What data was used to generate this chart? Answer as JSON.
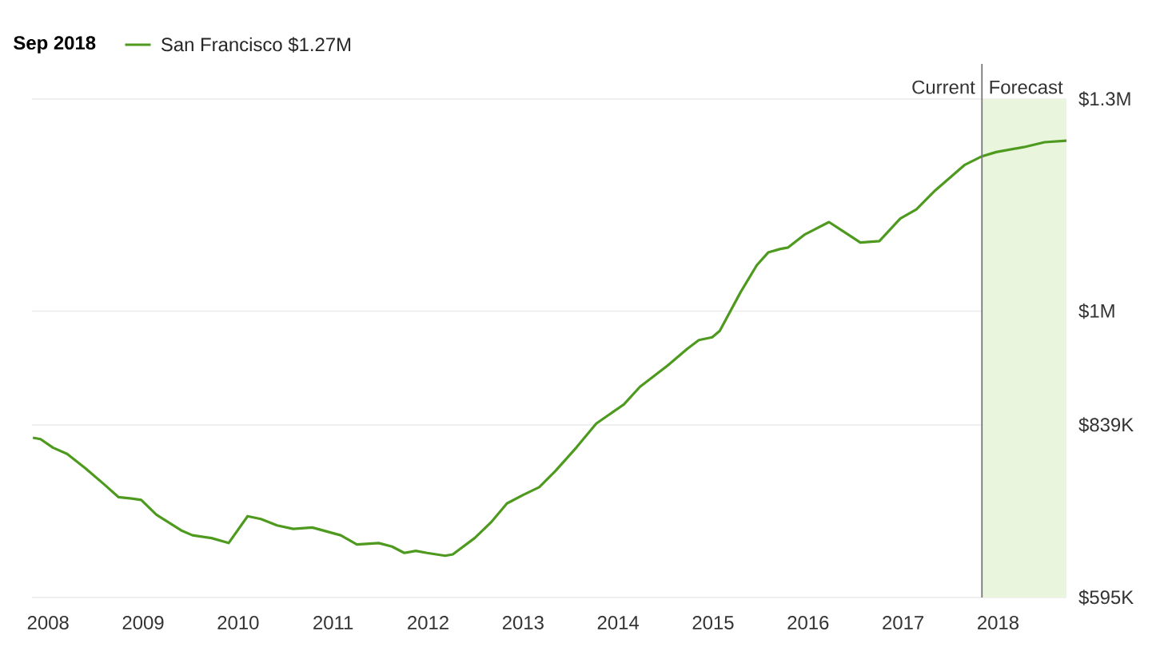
{
  "chart_data": {
    "type": "line",
    "legend_title": "Sep 2018",
    "legend": "top left",
    "grid": "y",
    "marker": "none",
    "line_style": "solid",
    "xlim": [
      2007.83,
      2018.72
    ],
    "xticks": [
      2008,
      2009,
      2010,
      2011,
      2012,
      2013,
      2014,
      2015,
      2016,
      2017,
      2018
    ],
    "ylim": [
      595000,
      1300000
    ],
    "yticks": [
      {
        "value": 595000,
        "label": "$595K"
      },
      {
        "value": 839000,
        "label": "$839K"
      },
      {
        "value": 1000000,
        "label": "$1M"
      },
      {
        "value": 1300000,
        "label": "$1.3M"
      }
    ],
    "ref_lines": [
      {
        "axis": "x",
        "value": 2017.83,
        "label": "Current",
        "color": "#777777"
      }
    ],
    "bands": [
      {
        "axis": "x",
        "from": 2017.83,
        "to": 2018.72,
        "label": "Forecast",
        "color": "#e9f5dc"
      }
    ],
    "series": [
      {
        "name": "San Francisco $1.27M",
        "color": "#4e9a1e",
        "x": [
          2007.84,
          2007.92,
          2008.05,
          2008.2,
          2008.39,
          2008.59,
          2008.74,
          2008.88,
          2008.98,
          2009.14,
          2009.4,
          2009.52,
          2009.72,
          2009.9,
          2010.1,
          2010.24,
          2010.41,
          2010.58,
          2010.78,
          2011.08,
          2011.25,
          2011.48,
          2011.62,
          2011.75,
          2011.87,
          2011.99,
          2012.18,
          2012.26,
          2012.49,
          2012.66,
          2012.83,
          2013.0,
          2013.17,
          2013.34,
          2013.56,
          2013.77,
          2014.06,
          2014.23,
          2014.52,
          2014.73,
          2014.85,
          2014.99,
          2015.07,
          2015.29,
          2015.46,
          2015.58,
          2015.71,
          2015.79,
          2015.96,
          2016.22,
          2016.38,
          2016.55,
          2016.75,
          2016.97,
          2017.14,
          2017.34,
          2017.65,
          2017.83,
          2017.98,
          2018.27,
          2018.49,
          2018.72
        ],
        "values": [
          821000,
          819000,
          807000,
          798000,
          778000,
          755000,
          737000,
          735000,
          733000,
          712000,
          690000,
          683000,
          679000,
          672000,
          710000,
          706000,
          697000,
          692000,
          694000,
          683000,
          670000,
          672000,
          667000,
          658000,
          661000,
          658000,
          654000,
          656000,
          679000,
          701000,
          728000,
          740000,
          751000,
          774000,
          807000,
          841000,
          868000,
          893000,
          923000,
          947000,
          959000,
          963000,
          972000,
          1027000,
          1065000,
          1083000,
          1088000,
          1090000,
          1108000,
          1126000,
          1112000,
          1097000,
          1099000,
          1131000,
          1144000,
          1171000,
          1207000,
          1219000,
          1225000,
          1232000,
          1239000,
          1241000
        ]
      }
    ]
  }
}
